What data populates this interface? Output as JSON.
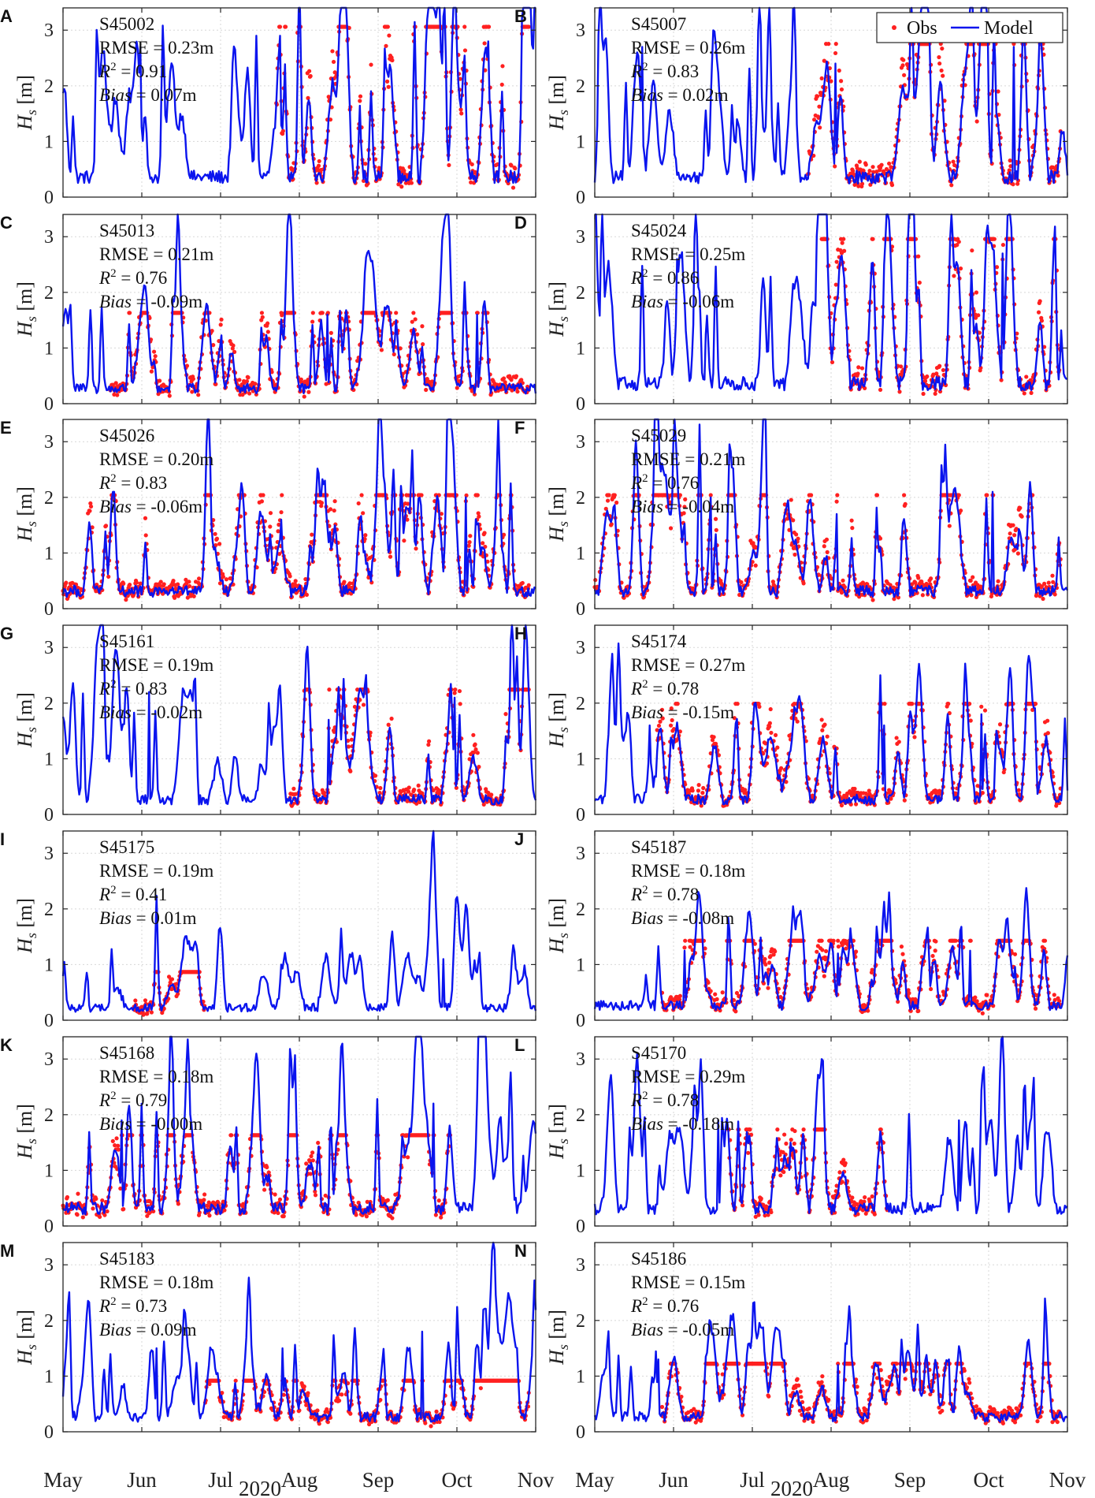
{
  "figure": {
    "shared_xlabel": "2020",
    "ylabel_symbol": "H",
    "ylabel_subscript": "s",
    "ylabel_unit": " [m]",
    "x_ticks": [
      "May",
      "Jun",
      "Jul",
      "Aug",
      "Sep",
      "Oct",
      "Nov"
    ],
    "y_ticks": [
      "0",
      "1",
      "2",
      "3"
    ],
    "legend": {
      "obs": "Obs",
      "model": "Model"
    },
    "colors": {
      "obs": "#ff2020",
      "model": "#0a14ee",
      "axes": "#262626",
      "grid": "#d7d7d7"
    }
  },
  "chart_data": [
    {
      "letter": "A",
      "station": "S45002",
      "rmse_text": "RMSE = 0.23m",
      "r2_text": "= 0.91",
      "bias_text": "= 0.07m",
      "type": "line",
      "ylim": [
        0,
        3.4
      ],
      "obs_start_fraction": 0.45,
      "model_peak_levels": [
        2.7,
        2.9,
        2.8
      ],
      "obs_peak_level": 3.0,
      "model_base_level": 0.4
    },
    {
      "letter": "B",
      "station": "S45007",
      "rmse_text": "RMSE = 0.26m",
      "r2_text": "= 0.83",
      "bias_text": "= 0.02m",
      "type": "line",
      "ylim": [
        0,
        3.4
      ],
      "obs_start_fraction": 0.45,
      "model_peak_levels": [
        2.7,
        2.4,
        2.7
      ],
      "obs_peak_level": 2.7,
      "model_base_level": 0.4
    },
    {
      "letter": "C",
      "station": "S45013",
      "rmse_text": "RMSE = 0.21m",
      "r2_text": "= 0.76",
      "bias_text": "= -0.09m",
      "type": "line",
      "ylim": [
        0,
        3.4
      ],
      "obs_start_fraction": 0.1,
      "model_peak_levels": [
        1.6,
        1.6,
        1.6
      ],
      "obs_peak_level": 1.6,
      "model_base_level": 0.3
    },
    {
      "letter": "D",
      "station": "S45024",
      "rmse_text": "RMSE = 0.25m",
      "r2_text": "= 0.86",
      "bias_text": "= -0.06m",
      "type": "line",
      "ylim": [
        0,
        3.4
      ],
      "obs_start_fraction": 0.48,
      "model_peak_levels": [
        2.6,
        2.5,
        2.7
      ],
      "obs_peak_level": 2.9,
      "model_base_level": 0.4
    },
    {
      "letter": "E",
      "station": "S45026",
      "rmse_text": "RMSE = 0.20m",
      "r2_text": "= 0.83",
      "bias_text": "= -0.06m",
      "type": "line",
      "ylim": [
        0,
        3.4
      ],
      "obs_start_fraction": 0.0,
      "model_peak_levels": [
        2.1,
        1.6,
        2.0
      ],
      "obs_peak_level": 2.0,
      "model_base_level": 0.35
    },
    {
      "letter": "F",
      "station": "S45029",
      "rmse_text": "RMSE = 0.21m",
      "r2_text": "= 0.76",
      "bias_text": "= -0.04m",
      "type": "line",
      "ylim": [
        0,
        3.4
      ],
      "obs_start_fraction": 0.0,
      "model_peak_levels": [
        2.0,
        1.7,
        2.1
      ],
      "obs_peak_level": 2.0,
      "model_base_level": 0.35
    },
    {
      "letter": "G",
      "station": "S45161",
      "rmse_text": "RMSE = 0.19m",
      "r2_text": "= 0.83",
      "bias_text": "= -0.02m",
      "type": "line",
      "ylim": [
        0,
        3.4
      ],
      "obs_start_fraction": 0.48,
      "model_peak_levels": [
        2.2,
        1.7,
        2.1
      ],
      "obs_peak_level": 2.2,
      "model_base_level": 0.3
    },
    {
      "letter": "H",
      "station": "S45174",
      "rmse_text": "RMSE = 0.27m",
      "r2_text": "= 0.78",
      "bias_text": "= -0.15m",
      "type": "line",
      "ylim": [
        0,
        3.4
      ],
      "obs_start_fraction": 0.13,
      "model_peak_levels": [
        1.6,
        1.6,
        1.8
      ],
      "obs_peak_level": 1.95,
      "model_base_level": 0.3
    },
    {
      "letter": "I",
      "station": "S45175",
      "rmse_text": "RMSE = 0.19m",
      "r2_text": "= 0.41",
      "bias_text": "= 0.01m",
      "type": "line",
      "ylim": [
        0,
        3.4
      ],
      "obs_start_fraction": 0.15,
      "obs_end_fraction": 0.3,
      "model_peak_levels": [
        1.1,
        1.0,
        1.1
      ],
      "obs_peak_level": 0.85,
      "model_base_level": 0.25
    },
    {
      "letter": "J",
      "station": "S45187",
      "rmse_text": "RMSE = 0.18m",
      "r2_text": "= 0.78",
      "bias_text": "= -0.08m",
      "type": "line",
      "ylim": [
        0,
        3.4
      ],
      "obs_start_fraction": 0.14,
      "model_peak_levels": [
        1.25,
        1.2,
        1.25
      ],
      "obs_peak_level": 1.4,
      "model_base_level": 0.3
    },
    {
      "letter": "K",
      "station": "S45168",
      "rmse_text": "RMSE = 0.18m",
      "r2_text": "= 0.79",
      "bias_text": "= -0.00m",
      "type": "line",
      "ylim": [
        0,
        3.4
      ],
      "obs_start_fraction": 0.0,
      "obs_end_fraction": 0.82,
      "model_peak_levels": [
        1.9,
        1.7,
        2.2
      ],
      "obs_peak_level": 1.6,
      "model_base_level": 0.35
    },
    {
      "letter": "L",
      "station": "S45170",
      "rmse_text": "RMSE = 0.29m",
      "r2_text": "= 0.78",
      "bias_text": "= -0.18m",
      "type": "line",
      "ylim": [
        0,
        3.4
      ],
      "obs_start_fraction": 0.28,
      "obs_end_fraction": 0.62,
      "model_peak_levels": [
        1.9,
        1.5,
        1.9
      ],
      "obs_peak_level": 1.7,
      "model_base_level": 0.35
    },
    {
      "letter": "M",
      "station": "S45183",
      "rmse_text": "RMSE = 0.18m",
      "r2_text": "= 0.73",
      "bias_text": "= 0.09m",
      "type": "line",
      "ylim": [
        0,
        3.4
      ],
      "obs_start_fraction": 0.3,
      "model_peak_levels": [
        1.5,
        1.5,
        1.8
      ],
      "obs_peak_level": 0.9,
      "model_base_level": 0.3
    },
    {
      "letter": "N",
      "station": "S45186",
      "rmse_text": "RMSE = 0.15m",
      "r2_text": "= 0.76",
      "bias_text": "= -0.05m",
      "type": "line",
      "ylim": [
        0,
        3.4
      ],
      "obs_start_fraction": 0.14,
      "model_peak_levels": [
        1.3,
        1.2,
        1.3
      ],
      "obs_peak_level": 1.2,
      "model_base_level": 0.3
    }
  ]
}
